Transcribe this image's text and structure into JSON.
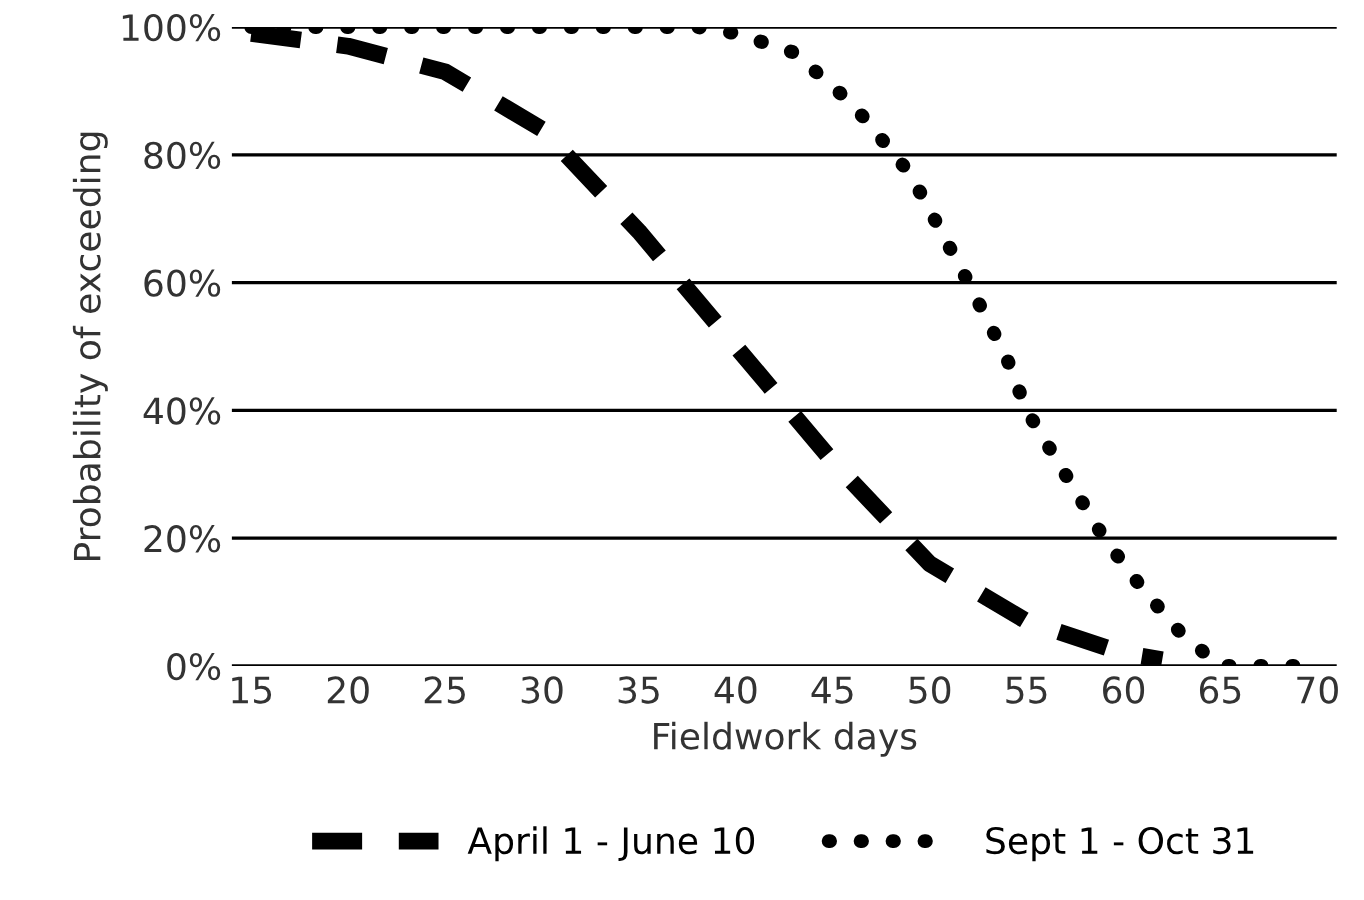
{
  "chart_data": {
    "type": "line",
    "xlabel": "Fieldwork days",
    "ylabel": "Probability of exceeding",
    "xlim": [
      14,
      71
    ],
    "xticks": [
      15,
      20,
      25,
      30,
      35,
      40,
      45,
      50,
      55,
      60,
      65,
      70
    ],
    "ylim": [
      0,
      100
    ],
    "yticks": [
      {
        "value": 0,
        "label": "0%"
      },
      {
        "value": 20,
        "label": "20%"
      },
      {
        "value": 40,
        "label": "40%"
      },
      {
        "value": 60,
        "label": "60%"
      },
      {
        "value": 80,
        "label": "80%"
      },
      {
        "value": 100,
        "label": "100%"
      }
    ],
    "grid": "y",
    "legend": "bottom",
    "series": [
      {
        "name": "April 1 - June 10",
        "color": "#000000",
        "line_style": "dashed",
        "x": [
          15,
          20,
          25,
          30,
          35,
          40,
          45,
          50,
          55,
          60,
          62
        ],
        "values": [
          99,
          97,
          93,
          84,
          68,
          50,
          32,
          16,
          7,
          2,
          1
        ]
      },
      {
        "name": "Sept 1 - Oct 31",
        "color": "#000000",
        "line_style": "dotted",
        "x": [
          15,
          20,
          25,
          30,
          35,
          38,
          40,
          43,
          46,
          49,
          52,
          54,
          55,
          57,
          59,
          61,
          63,
          65,
          70
        ],
        "values": [
          100,
          100,
          100,
          100,
          100,
          100,
          99,
          96,
          88,
          77,
          60,
          48,
          40,
          30,
          20,
          12,
          5,
          0,
          0
        ]
      }
    ]
  }
}
